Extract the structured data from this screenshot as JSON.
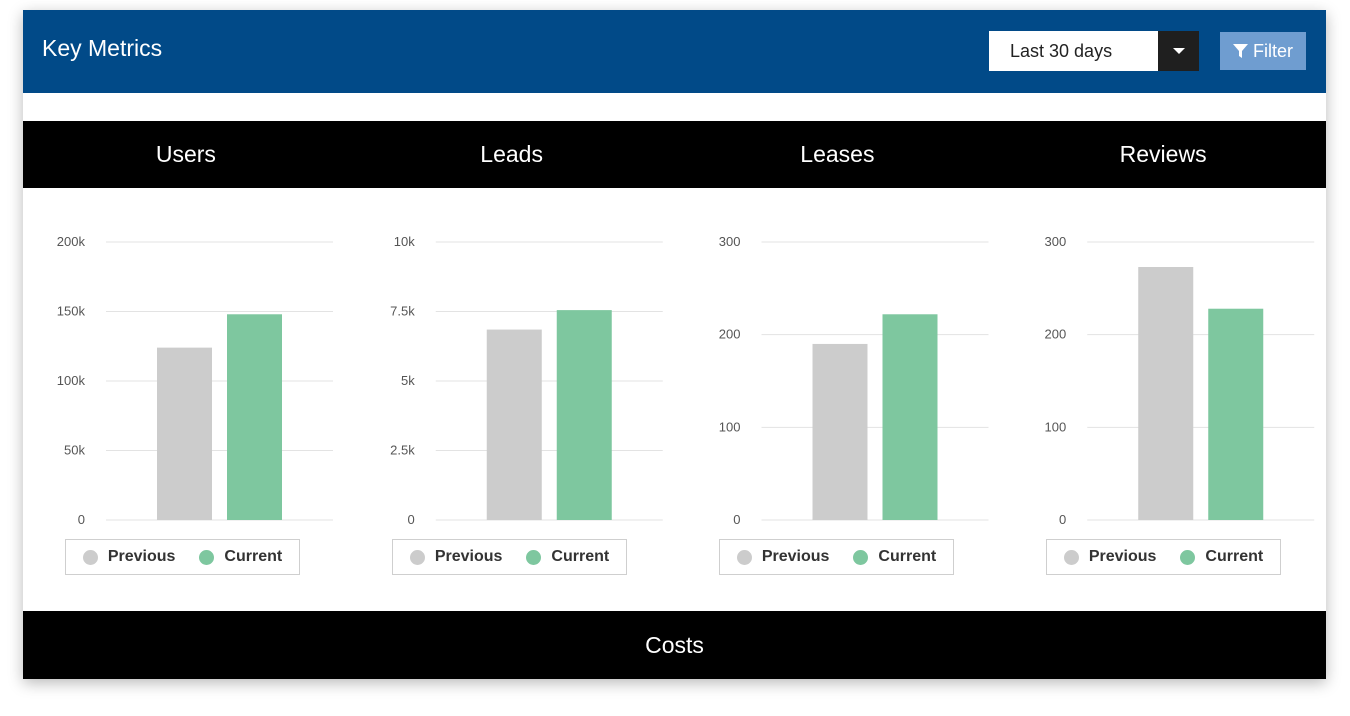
{
  "header": {
    "title": "Key Metrics"
  },
  "range_select": {
    "value": "Last 30 days"
  },
  "filter_button": {
    "label": "Filter"
  },
  "tabs": [
    {
      "label": "Users"
    },
    {
      "label": "Leads"
    },
    {
      "label": "Leases"
    },
    {
      "label": "Reviews"
    }
  ],
  "costs_section": {
    "label": "Costs"
  },
  "colors": {
    "previous": "#cccccc",
    "current": "#7ec79f",
    "header": "#014a88"
  },
  "chart_data": [
    {
      "type": "bar",
      "title": "Users",
      "categories": [
        "Previous",
        "Current"
      ],
      "values": [
        124000,
        148000
      ],
      "ylim": [
        0,
        200000
      ],
      "yticks": [
        {
          "value": 0,
          "label": "0"
        },
        {
          "value": 50000,
          "label": "50k"
        },
        {
          "value": 100000,
          "label": "100k"
        },
        {
          "value": 150000,
          "label": "150k"
        },
        {
          "value": 200000,
          "label": "200k"
        }
      ],
      "legend": [
        "Previous",
        "Current"
      ],
      "legend_position": "bottom",
      "grid": true
    },
    {
      "type": "bar",
      "title": "Leads",
      "categories": [
        "Previous",
        "Current"
      ],
      "values": [
        6850,
        7550
      ],
      "ylim": [
        0,
        10000
      ],
      "yticks": [
        {
          "value": 0,
          "label": "0"
        },
        {
          "value": 2500,
          "label": "2.5k"
        },
        {
          "value": 5000,
          "label": "5k"
        },
        {
          "value": 7500,
          "label": "7.5k"
        },
        {
          "value": 10000,
          "label": "10k"
        }
      ],
      "legend": [
        "Previous",
        "Current"
      ],
      "legend_position": "bottom",
      "grid": true
    },
    {
      "type": "bar",
      "title": "Leases",
      "categories": [
        "Previous",
        "Current"
      ],
      "values": [
        190,
        222
      ],
      "ylim": [
        0,
        300
      ],
      "yticks": [
        {
          "value": 0,
          "label": "0"
        },
        {
          "value": 100,
          "label": "100"
        },
        {
          "value": 200,
          "label": "200"
        },
        {
          "value": 300,
          "label": "300"
        }
      ],
      "legend": [
        "Previous",
        "Current"
      ],
      "legend_position": "bottom",
      "grid": true
    },
    {
      "type": "bar",
      "title": "Reviews",
      "categories": [
        "Previous",
        "Current"
      ],
      "values": [
        273,
        228
      ],
      "ylim": [
        0,
        300
      ],
      "yticks": [
        {
          "value": 0,
          "label": "0"
        },
        {
          "value": 100,
          "label": "100"
        },
        {
          "value": 200,
          "label": "200"
        },
        {
          "value": 300,
          "label": "300"
        }
      ],
      "legend": [
        "Previous",
        "Current"
      ],
      "legend_position": "bottom",
      "grid": true
    }
  ]
}
